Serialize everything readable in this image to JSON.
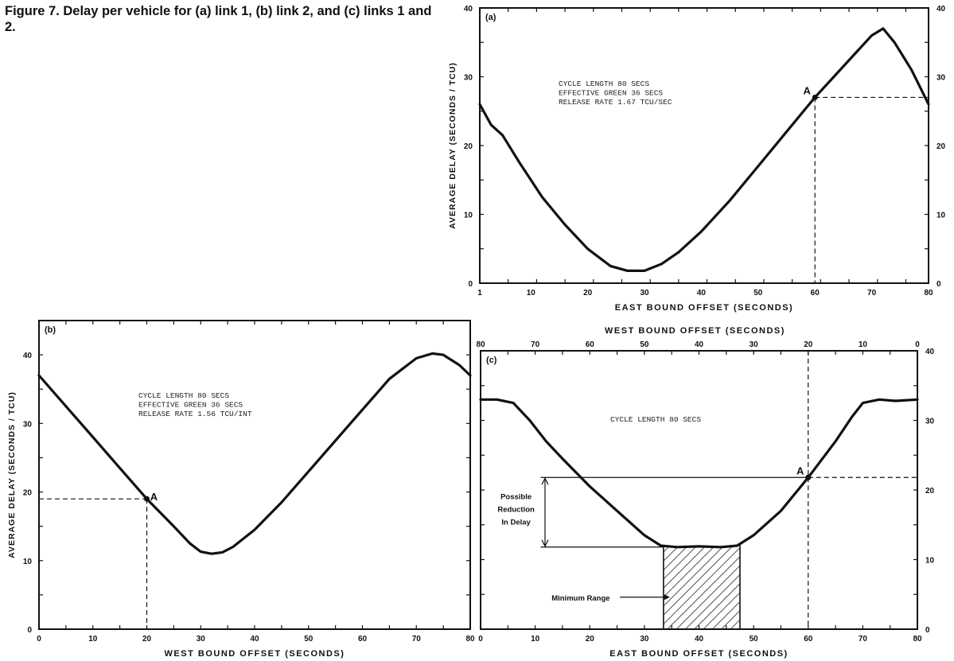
{
  "caption": "Figure 7. Delay per vehicle for (a) link 1, (b) link 2, and (c) links 1 and 2.",
  "chart_data": [
    {
      "id": "a",
      "type": "line",
      "panel_label": "(a)",
      "xlabel": "EAST BOUND OFFSET (SECONDS)",
      "ylabel": "AVERAGE DELAY (SECONDS / TCU)",
      "xlim": [
        1,
        80
      ],
      "ylim": [
        0,
        40
      ],
      "x_ticks": [
        1,
        10,
        20,
        30,
        40,
        50,
        60,
        70,
        80
      ],
      "y_ticks": [
        0,
        10,
        20,
        30,
        40
      ],
      "right_y_ticks": [
        0,
        10,
        20,
        30,
        40
      ],
      "annotation_lines": [
        "CYCLE LENGTH    80 SECS",
        "EFFECTIVE GREEN 36 SECS",
        "RELEASE RATE  1.67 TCU/SEC"
      ],
      "point_label": "A",
      "point": [
        60,
        27
      ],
      "series": [
        {
          "x": [
            1,
            3,
            5,
            8,
            12,
            16,
            20,
            24,
            27,
            30,
            33,
            36,
            40,
            45,
            50,
            55,
            60,
            65,
            70,
            72,
            74,
            77,
            80
          ],
          "y": [
            26,
            23,
            21.5,
            17.5,
            12.5,
            8.5,
            5,
            2.5,
            1.8,
            1.8,
            2.8,
            4.5,
            7.5,
            12,
            17,
            22,
            27,
            31.5,
            36,
            37,
            35,
            31,
            26
          ]
        }
      ]
    },
    {
      "id": "b",
      "type": "line",
      "panel_label": "(b)",
      "xlabel": "WEST BOUND OFFSET (SECONDS)",
      "ylabel": "AVERAGE DELAY (SECONDS / TCU)",
      "xlim": [
        0,
        80
      ],
      "ylim": [
        0,
        45
      ],
      "x_ticks": [
        0,
        10,
        20,
        30,
        40,
        50,
        60,
        70,
        80
      ],
      "y_ticks": [
        0,
        10,
        20,
        30,
        40
      ],
      "annotation_lines": [
        "CYCLE LENGTH    80 SECS",
        "EFFECTIVE GREEN 36 SECS",
        "RELEASE RATE  1.56 TCU/INT"
      ],
      "point_label": "A",
      "point": [
        20,
        19
      ],
      "series": [
        {
          "x": [
            0,
            5,
            10,
            15,
            20,
            25,
            28,
            30,
            32,
            34,
            36,
            40,
            45,
            50,
            55,
            60,
            65,
            70,
            73,
            75,
            78,
            80
          ],
          "y": [
            37,
            32.5,
            28,
            23.5,
            19,
            15,
            12.5,
            11.3,
            11,
            11.2,
            12,
            14.5,
            18.5,
            23,
            27.5,
            32,
            36.5,
            39.5,
            40.2,
            40,
            38.5,
            37
          ]
        }
      ]
    },
    {
      "id": "c",
      "type": "line",
      "panel_label": "(c)",
      "xlabel": "EAST BOUND OFFSET (SECONDS)",
      "top_xlabel": "WEST BOUND OFFSET (SECONDS)",
      "xlim": [
        0,
        80
      ],
      "ylim": [
        0,
        40
      ],
      "x_ticks": [
        0,
        10,
        20,
        30,
        40,
        50,
        60,
        70,
        80
      ],
      "top_x_ticks": [
        80,
        70,
        60,
        50,
        40,
        30,
        20,
        10,
        0
      ],
      "right_y_ticks": [
        0,
        10,
        20,
        30,
        40
      ],
      "annotation_lines": [
        "CYCLE LENGTH 80 SECS"
      ],
      "point_label": "A",
      "point": [
        60,
        21.8
      ],
      "minimum_range": [
        33.5,
        47.5
      ],
      "minimum_delay": 11.8,
      "range_label": "Minimum Range",
      "reduction_label_lines": [
        "Possible",
        "Reduction",
        "In Delay"
      ],
      "series": [
        {
          "x": [
            0,
            3,
            6,
            9,
            12,
            15,
            20,
            25,
            30,
            33,
            36,
            40,
            44,
            47,
            50,
            55,
            60,
            65,
            68,
            70,
            73,
            76,
            80
          ],
          "y": [
            33,
            33,
            32.5,
            30,
            27,
            24.5,
            20.5,
            17,
            13.5,
            12,
            11.8,
            11.9,
            11.8,
            12,
            13.5,
            17,
            21.8,
            27,
            30.5,
            32.5,
            33,
            32.8,
            33
          ]
        }
      ]
    }
  ]
}
